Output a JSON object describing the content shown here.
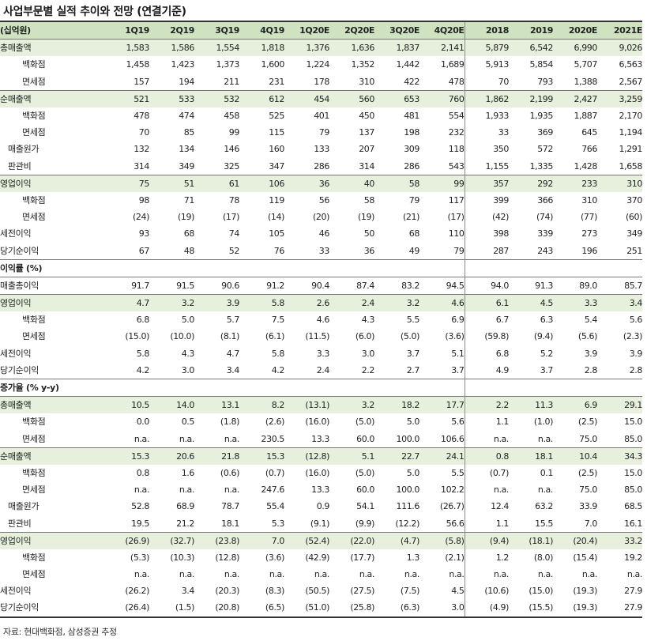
{
  "title": "사업부문별 실적 추이와 전망 (연결기준)",
  "header": [
    "(십억원)",
    "1Q19",
    "2Q19",
    "3Q19",
    "4Q19",
    "1Q20E",
    "2Q20E",
    "3Q20E",
    "4Q20E",
    "2018",
    "2019",
    "2020E",
    "2021E"
  ],
  "rows": [
    {
      "label": "총매출액",
      "band": true,
      "values": [
        "1,583",
        "1,586",
        "1,554",
        "1,818",
        "1,376",
        "1,636",
        "1,837",
        "2,141",
        "5,879",
        "6,542",
        "6,990",
        "9,026"
      ]
    },
    {
      "label": "백화점",
      "indent": 2,
      "values": [
        "1,458",
        "1,423",
        "1,373",
        "1,600",
        "1,224",
        "1,352",
        "1,442",
        "1,689",
        "5,913",
        "5,854",
        "5,707",
        "6,563"
      ]
    },
    {
      "label": "면세점",
      "indent": 2,
      "values": [
        "157",
        "194",
        "211",
        "231",
        "178",
        "310",
        "422",
        "478",
        "70",
        "793",
        "1,388",
        "2,567"
      ]
    },
    {
      "label": "순매출액",
      "band": true,
      "values": [
        "521",
        "533",
        "532",
        "612",
        "454",
        "560",
        "653",
        "760",
        "1,862",
        "2,199",
        "2,427",
        "3,259"
      ]
    },
    {
      "label": "백화점",
      "indent": 2,
      "values": [
        "478",
        "474",
        "458",
        "525",
        "401",
        "450",
        "481",
        "554",
        "1,933",
        "1,935",
        "1,887",
        "2,170"
      ]
    },
    {
      "label": "면세점",
      "indent": 2,
      "values": [
        "70",
        "85",
        "99",
        "115",
        "79",
        "137",
        "198",
        "232",
        "33",
        "369",
        "645",
        "1,194"
      ]
    },
    {
      "label": "매출원가",
      "indent": 1,
      "values": [
        "132",
        "134",
        "146",
        "160",
        "133",
        "207",
        "309",
        "118",
        "350",
        "572",
        "766",
        "1,291"
      ]
    },
    {
      "label": "판관비",
      "indent": 1,
      "values": [
        "314",
        "349",
        "325",
        "347",
        "286",
        "314",
        "286",
        "543",
        "1,155",
        "1,335",
        "1,428",
        "1,658"
      ]
    },
    {
      "label": "영업이익",
      "band": true,
      "values": [
        "75",
        "51",
        "61",
        "106",
        "36",
        "40",
        "58",
        "99",
        "357",
        "292",
        "233",
        "310"
      ]
    },
    {
      "label": "백화점",
      "indent": 2,
      "values": [
        "98",
        "71",
        "78",
        "119",
        "56",
        "58",
        "79",
        "117",
        "399",
        "366",
        "310",
        "370"
      ]
    },
    {
      "label": "면세점",
      "indent": 2,
      "values": [
        "(24)",
        "(19)",
        "(17)",
        "(14)",
        "(20)",
        "(19)",
        "(21)",
        "(17)",
        "(42)",
        "(74)",
        "(77)",
        "(60)"
      ]
    },
    {
      "label": "세전이익",
      "values": [
        "93",
        "68",
        "74",
        "105",
        "46",
        "50",
        "68",
        "110",
        "398",
        "339",
        "273",
        "349"
      ]
    },
    {
      "label": "당기순이익",
      "values": [
        "67",
        "48",
        "52",
        "76",
        "33",
        "36",
        "49",
        "79",
        "287",
        "243",
        "196",
        "251"
      ]
    },
    {
      "label": "이익률 (%)",
      "section": true,
      "values": [
        "",
        "",
        "",
        "",
        "",
        "",
        "",
        "",
        "",
        "",
        "",
        ""
      ]
    },
    {
      "label": "매출총이익",
      "values": [
        "91.7",
        "91.5",
        "90.6",
        "91.2",
        "90.4",
        "87.4",
        "83.2",
        "94.5",
        "94.0",
        "91.3",
        "89.0",
        "85.7"
      ]
    },
    {
      "label": "영업이익",
      "band": true,
      "values": [
        "4.7",
        "3.2",
        "3.9",
        "5.8",
        "2.6",
        "2.4",
        "3.2",
        "4.6",
        "6.1",
        "4.5",
        "3.3",
        "3.4"
      ]
    },
    {
      "label": "백화점",
      "indent": 2,
      "values": [
        "6.8",
        "5.0",
        "5.7",
        "7.5",
        "4.6",
        "4.3",
        "5.5",
        "6.9",
        "6.7",
        "6.3",
        "5.4",
        "5.6"
      ]
    },
    {
      "label": "면세점",
      "indent": 2,
      "values": [
        "(15.0)",
        "(10.0)",
        "(8.1)",
        "(6.1)",
        "(11.5)",
        "(6.0)",
        "(5.0)",
        "(3.6)",
        "(59.8)",
        "(9.4)",
        "(5.6)",
        "(2.3)"
      ]
    },
    {
      "label": "세전이익",
      "values": [
        "5.8",
        "4.3",
        "4.7",
        "5.8",
        "3.3",
        "3.0",
        "3.7",
        "5.1",
        "6.8",
        "5.2",
        "3.9",
        "3.9"
      ]
    },
    {
      "label": "당기순이익",
      "values": [
        "4.2",
        "3.0",
        "3.4",
        "4.2",
        "2.4",
        "2.2",
        "2.7",
        "3.7",
        "4.9",
        "3.7",
        "2.8",
        "2.8"
      ]
    },
    {
      "label": "증가율 (% y-y)",
      "section": true,
      "values": [
        "",
        "",
        "",
        "",
        "",
        "",
        "",
        "",
        "",
        "",
        "",
        ""
      ]
    },
    {
      "label": "총매출액",
      "band": true,
      "values": [
        "10.5",
        "14.0",
        "13.1",
        "8.2",
        "(13.1)",
        "3.2",
        "18.2",
        "17.7",
        "2.2",
        "11.3",
        "6.9",
        "29.1"
      ]
    },
    {
      "label": "백화점",
      "indent": 2,
      "values": [
        "0.0",
        "0.5",
        "(1.8)",
        "(2.6)",
        "(16.0)",
        "(5.0)",
        "5.0",
        "5.6",
        "1.1",
        "(1.0)",
        "(2.5)",
        "15.0"
      ]
    },
    {
      "label": "면세점",
      "indent": 2,
      "values": [
        "n.a.",
        "n.a.",
        "n.a.",
        "230.5",
        "13.3",
        "60.0",
        "100.0",
        "106.6",
        "n.a.",
        "n.a.",
        "75.0",
        "85.0"
      ]
    },
    {
      "label": "순매출액",
      "band": true,
      "values": [
        "15.3",
        "20.6",
        "21.8",
        "15.3",
        "(12.8)",
        "5.1",
        "22.7",
        "24.1",
        "0.8",
        "18.1",
        "10.4",
        "34.3"
      ]
    },
    {
      "label": "백화점",
      "indent": 2,
      "values": [
        "0.8",
        "1.6",
        "(0.6)",
        "(0.7)",
        "(16.0)",
        "(5.0)",
        "5.0",
        "5.5",
        "(0.7)",
        "0.1",
        "(2.5)",
        "15.0"
      ]
    },
    {
      "label": "면세점",
      "indent": 2,
      "values": [
        "n.a.",
        "n.a.",
        "n.a.",
        "247.6",
        "13.3",
        "60.0",
        "100.0",
        "102.2",
        "n.a.",
        "n.a.",
        "75.0",
        "85.0"
      ]
    },
    {
      "label": "매출원가",
      "indent": 1,
      "values": [
        "52.8",
        "68.9",
        "78.7",
        "55.4",
        "0.9",
        "54.1",
        "111.6",
        "(26.7)",
        "12.4",
        "63.2",
        "33.9",
        "68.5"
      ]
    },
    {
      "label": "판관비",
      "indent": 1,
      "values": [
        "19.5",
        "21.2",
        "18.1",
        "5.3",
        "(9.1)",
        "(9.9)",
        "(12.2)",
        "56.6",
        "1.1",
        "15.5",
        "7.0",
        "16.1"
      ]
    },
    {
      "label": "영업이익",
      "band": true,
      "values": [
        "(26.9)",
        "(32.7)",
        "(23.8)",
        "7.0",
        "(52.4)",
        "(22.0)",
        "(4.7)",
        "(5.8)",
        "(9.4)",
        "(18.1)",
        "(20.4)",
        "33.2"
      ]
    },
    {
      "label": "백화점",
      "indent": 2,
      "values": [
        "(5.3)",
        "(10.3)",
        "(12.8)",
        "(3.6)",
        "(42.9)",
        "(17.7)",
        "1.3",
        "(2.1)",
        "1.2",
        "(8.0)",
        "(15.4)",
        "19.2"
      ]
    },
    {
      "label": "면세점",
      "indent": 2,
      "values": [
        "n.a.",
        "n.a.",
        "n.a.",
        "n.a.",
        "n.a.",
        "n.a.",
        "n.a.",
        "n.a.",
        "n.a.",
        "n.a.",
        "n.a.",
        "n.a."
      ]
    },
    {
      "label": "세전이익",
      "values": [
        "(26.2)",
        "3.4",
        "(20.3)",
        "(8.3)",
        "(50.5)",
        "(27.5)",
        "(7.5)",
        "4.5",
        "(10.6)",
        "(15.0)",
        "(19.3)",
        "27.9"
      ]
    },
    {
      "label": "당기순이익",
      "values": [
        "(26.4)",
        "(1.5)",
        "(20.8)",
        "(6.5)",
        "(51.0)",
        "(25.8)",
        "(6.3)",
        "3.0",
        "(4.9)",
        "(15.5)",
        "(19.3)",
        "27.9"
      ]
    }
  ],
  "source": "자료: 현대백화점, 삼성증권 추정",
  "colors": {
    "header_bg": "#cfe3c1",
    "band_bg": "#e6f0dc",
    "rule": "#333333"
  }
}
